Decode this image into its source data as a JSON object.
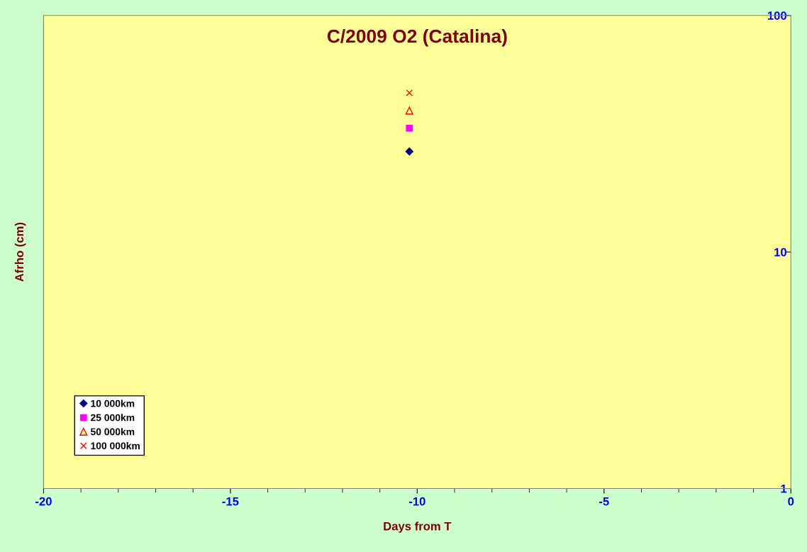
{
  "chart_data": {
    "type": "scatter",
    "title": "C/2009 O2 (Catalina)",
    "xlabel": "Days from T",
    "ylabel": "Afrho (cm)",
    "x": [
      -10.21
    ],
    "series": [
      {
        "name": "10 000km",
        "color": "#000080",
        "marker": "diamond",
        "values": [
          26.6
        ]
      },
      {
        "name": "25 000km",
        "color": "#ff00ff",
        "marker": "square",
        "values": [
          33.4
        ]
      },
      {
        "name": "50 000km",
        "color": "#ff0000",
        "marker": "triangle",
        "values": [
          39.6
        ]
      },
      {
        "name": "100 000km",
        "color": "#ff0000",
        "marker": "cross",
        "values": [
          47.1
        ]
      }
    ],
    "xlim": [
      -20,
      0
    ],
    "xticks": [
      -20,
      -15,
      -10,
      -5,
      0
    ],
    "ylim": [
      1,
      100
    ],
    "yticks": [
      1,
      10,
      100
    ],
    "log": true,
    "grid": false,
    "legend": "bottom left"
  }
}
